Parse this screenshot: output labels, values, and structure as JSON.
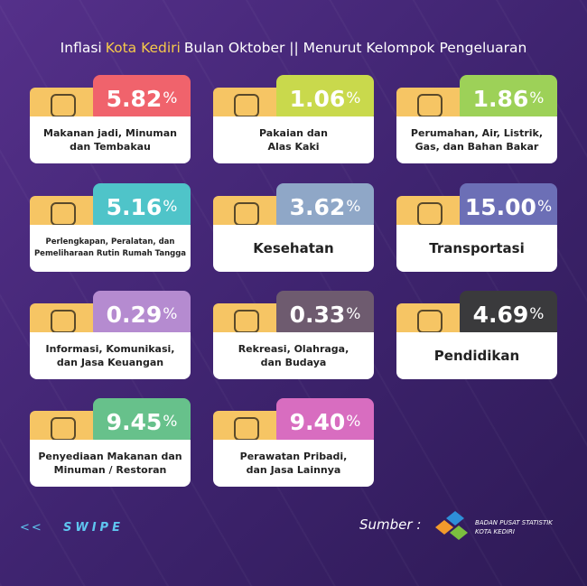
{
  "header": {
    "title_before": "Inflasi",
    "title_highlight": "Kota Kediri",
    "title_after": "Bulan Oktober || Menurut Kelompok Pengeluaran"
  },
  "cards": [
    {
      "value": "5.82",
      "unit": "%",
      "color": "#f0636c",
      "lines": [
        "Makanan jadi, Minuman",
        "dan Tembakau"
      ]
    },
    {
      "value": "1.06",
      "unit": "%",
      "color": "#c9d94c",
      "lines": [
        "Pakaian dan",
        "Alas Kaki"
      ]
    },
    {
      "value": "1.86",
      "unit": "%",
      "color": "#9dd158",
      "lines": [
        "Perumahan, Air, Listrik,",
        "Gas, dan Bahan Bakar"
      ]
    },
    {
      "value": "5.16",
      "unit": "%",
      "color": "#4fc4c9",
      "lines": [
        "Perlengkapan, Peralatan, dan",
        "Pemeliharaan Rutin Rumah Tangga"
      ],
      "small": true
    },
    {
      "value": "3.62",
      "unit": "%",
      "color": "#8fa7c7",
      "lines": [
        "Kesehatan"
      ],
      "big": true
    },
    {
      "value": "15.00",
      "unit": "%",
      "color": "#6c6fb6",
      "lines": [
        "Transportasi"
      ],
      "big": true
    },
    {
      "value": "0.29",
      "unit": "%",
      "color": "#b58bd0",
      "lines": [
        "Informasi, Komunikasi,",
        "dan Jasa Keuangan"
      ]
    },
    {
      "value": "0.33",
      "unit": "%",
      "color": "#6e5b6f",
      "lines": [
        "Rekreasi, Olahraga,",
        "dan Budaya"
      ]
    },
    {
      "value": "4.69",
      "unit": "%",
      "color": "#3a3a3c",
      "lines": [
        "Pendidikan"
      ],
      "big": true
    },
    {
      "value": "9.45",
      "unit": "%",
      "color": "#67c18b",
      "lines": [
        "Penyediaan Makanan dan",
        "Minuman / Restoran"
      ]
    },
    {
      "value": "9.40",
      "unit": "%",
      "color": "#d86dc0",
      "lines": [
        "Perawatan Pribadi,",
        "dan Jasa Lainnya"
      ]
    }
  ],
  "footer": {
    "back": "<<",
    "swipe": "SWIPE",
    "source": "Sumber :",
    "org": "BADAN PUSAT STATISTIK",
    "org_city": "KOTA KEDIRI"
  }
}
